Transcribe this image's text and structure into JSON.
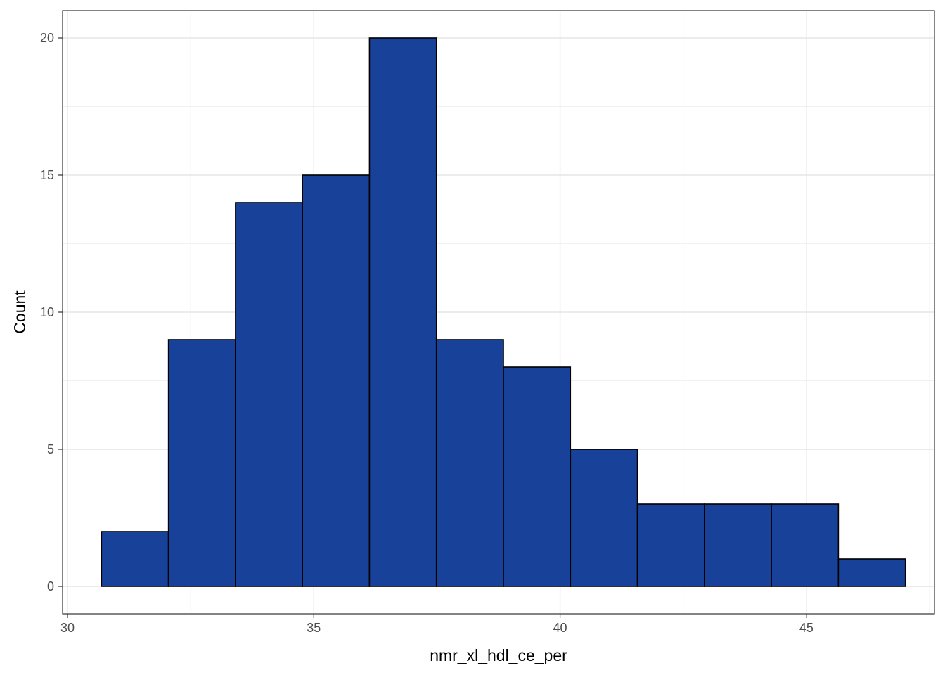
{
  "chart_data": {
    "type": "bar",
    "subtype": "histogram",
    "xlabel": "nmr_xl_hdl_ce_per",
    "ylabel": "Count",
    "x_ticks": [
      "30",
      "35",
      "40",
      "45"
    ],
    "y_ticks": [
      "0",
      "5",
      "10",
      "15",
      "20"
    ],
    "xlim": [
      29.9,
      47.6
    ],
    "ylim": [
      -1.0,
      21.0
    ],
    "bins": [
      {
        "x0": 30.69,
        "x1": 32.05,
        "count": 2
      },
      {
        "x0": 32.05,
        "x1": 33.41,
        "count": 9
      },
      {
        "x0": 33.41,
        "x1": 34.77,
        "count": 14
      },
      {
        "x0": 34.77,
        "x1": 36.13,
        "count": 15
      },
      {
        "x0": 36.13,
        "x1": 37.49,
        "count": 20
      },
      {
        "x0": 37.49,
        "x1": 38.85,
        "count": 9
      },
      {
        "x0": 38.85,
        "x1": 40.21,
        "count": 8
      },
      {
        "x0": 40.21,
        "x1": 41.57,
        "count": 5
      },
      {
        "x0": 41.57,
        "x1": 42.93,
        "count": 3
      },
      {
        "x0": 42.93,
        "x1": 44.29,
        "count": 3
      },
      {
        "x0": 44.29,
        "x1": 45.65,
        "count": 3
      },
      {
        "x0": 45.65,
        "x1": 47.01,
        "count": 1
      }
    ],
    "bar_fill": "#18429a",
    "bar_stroke": "#000000",
    "grid": true,
    "legend": "none"
  }
}
